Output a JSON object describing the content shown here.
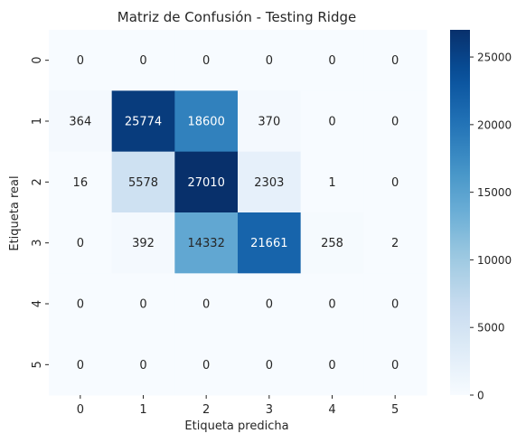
{
  "chart_data": {
    "type": "heatmap",
    "title": "Matriz de Confusión - Testing Ridge",
    "xlabel": "Etiqueta predicha",
    "ylabel": "Etiqueta real",
    "x_categories": [
      "0",
      "1",
      "2",
      "3",
      "4",
      "5"
    ],
    "y_categories": [
      "0",
      "1",
      "2",
      "3",
      "4",
      "5"
    ],
    "values": [
      [
        0,
        0,
        0,
        0,
        0,
        0
      ],
      [
        364,
        25774,
        18600,
        370,
        0,
        0
      ],
      [
        16,
        5578,
        27010,
        2303,
        1,
        0
      ],
      [
        0,
        392,
        14332,
        21661,
        258,
        2
      ],
      [
        0,
        0,
        0,
        0,
        0,
        0
      ],
      [
        0,
        0,
        0,
        0,
        0,
        0
      ]
    ],
    "colorbar": {
      "colormap": "Blues",
      "min": 0,
      "max": 27010,
      "ticks": [
        0,
        5000,
        10000,
        15000,
        20000,
        25000
      ]
    },
    "annotations": "cell values printed in each cell"
  }
}
